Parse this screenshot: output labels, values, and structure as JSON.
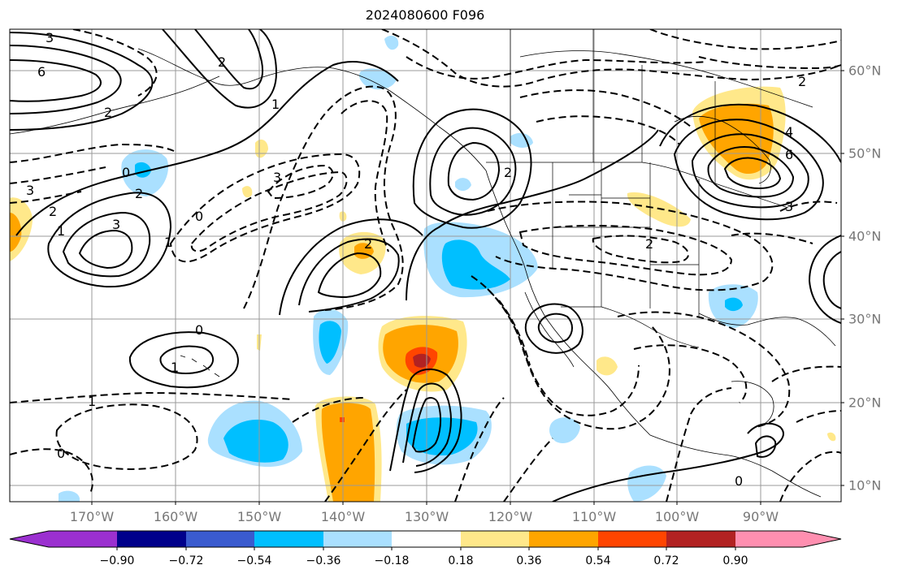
{
  "title": "2024080600 F096",
  "lon_labels": [
    "170°W",
    "160°W",
    "150°W",
    "140°W",
    "130°W",
    "120°W",
    "110°W",
    "100°W",
    "90°W"
  ],
  "lat_labels": [
    "60°N",
    "50°N",
    "40°N",
    "30°N",
    "20°N",
    "10°N"
  ],
  "colorbar": {
    "ticks": [
      "−0.90",
      "−0.72",
      "−0.54",
      "−0.36",
      "−0.18",
      "0.18",
      "0.36",
      "0.54",
      "0.72",
      "0.90"
    ],
    "colors": [
      "#9b30d0",
      "#00008b",
      "#3a5bcf",
      "#00bfff",
      "#aae0ff",
      "#ffffff",
      "#ffe88a",
      "#ffa500",
      "#ff4500",
      "#b22222",
      "#ff8fb0"
    ]
  },
  "contour_labels": [
    {
      "text": "3",
      "role": "solid"
    },
    {
      "text": "6",
      "role": "solid"
    },
    {
      "text": "2",
      "role": "solid"
    },
    {
      "text": "1",
      "role": "solid"
    },
    {
      "text": "0",
      "role": "solid"
    },
    {
      "text": "2",
      "role": "dashed"
    },
    {
      "text": "3",
      "role": "dashed"
    },
    {
      "text": "1",
      "role": "dashed"
    },
    {
      "text": "2",
      "role": "solid"
    },
    {
      "text": "3",
      "role": "solid"
    },
    {
      "text": "2",
      "role": "solid"
    },
    {
      "text": "4",
      "role": "solid"
    },
    {
      "text": "6",
      "role": "solid"
    },
    {
      "text": "3",
      "role": "solid"
    },
    {
      "text": "2",
      "role": "dashed"
    },
    {
      "text": "0",
      "role": "dashed"
    },
    {
      "text": "1",
      "role": "dashed"
    },
    {
      "text": "0",
      "role": "solid"
    },
    {
      "text": "2",
      "role": "solid"
    },
    {
      "text": "2",
      "role": "solid"
    },
    {
      "text": "3",
      "role": "dashed"
    },
    {
      "text": "1",
      "role": "solid"
    },
    {
      "text": "2",
      "role": "dashed"
    },
    {
      "text": "0",
      "role": "dashed"
    },
    {
      "text": "1",
      "role": "dashed"
    },
    {
      "text": "0",
      "role": "solid"
    }
  ]
}
